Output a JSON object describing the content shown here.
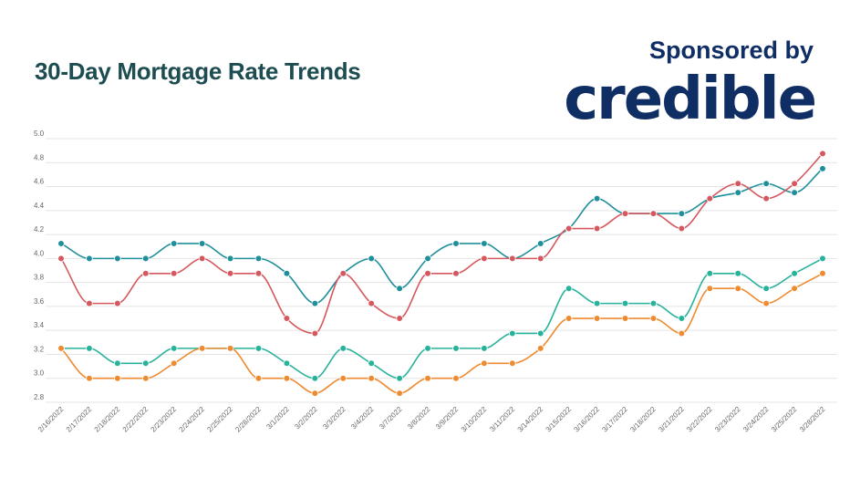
{
  "chart_data": {
    "type": "line",
    "title": "30-Day Mortgage Rate Trends",
    "sponsor_text": "Sponsored by",
    "sponsor_logo": "credible",
    "xlabel": "",
    "ylabel": "",
    "ylim": [
      2.8,
      5.0
    ],
    "yticks": [
      "5.0",
      "4.8",
      "4.6",
      "4.4",
      "4.2",
      "4.0",
      "3.8",
      "3.6",
      "3.4",
      "3.2",
      "3.0",
      "2.8"
    ],
    "grid": true,
    "legend": "none",
    "categories": [
      "2/16/2022",
      "2/17/2022",
      "2/18/2022",
      "2/22/2022",
      "2/23/2022",
      "2/24/2022",
      "2/25/2022",
      "2/28/2022",
      "3/1/2022",
      "3/2/2022",
      "3/3/2022",
      "3/4/2022",
      "3/7/2022",
      "3/8/2022",
      "3/9/2022",
      "3/10/2022",
      "3/11/2022",
      "3/14/2022",
      "3/15/2022",
      "3/16/2022",
      "3/17/2022",
      "3/18/2022",
      "3/21/2022",
      "3/22/2022",
      "3/23/2022",
      "3/24/2022",
      "3/25/2022",
      "3/28/2022"
    ],
    "series": [
      {
        "color": "#1f8f9b",
        "values": [
          4.125,
          4.0,
          4.0,
          4.0,
          4.125,
          4.125,
          4.0,
          4.0,
          3.875,
          3.625,
          3.875,
          4.0,
          3.75,
          4.0,
          4.125,
          4.125,
          4.0,
          4.125,
          4.25,
          4.5,
          4.375,
          4.375,
          4.375,
          4.5,
          4.55,
          4.625,
          4.55,
          4.75
        ]
      },
      {
        "color": "#d6585f",
        "values": [
          4.0,
          3.625,
          3.625,
          3.875,
          3.875,
          4.0,
          3.875,
          3.875,
          3.5,
          3.375,
          3.875,
          3.625,
          3.5,
          3.875,
          3.875,
          4.0,
          4.0,
          4.0,
          4.25,
          4.25,
          4.375,
          4.375,
          4.25,
          4.5,
          4.625,
          4.5,
          4.625,
          4.875
        ]
      },
      {
        "color": "#27b29b",
        "values": [
          3.25,
          3.25,
          3.125,
          3.125,
          3.25,
          3.25,
          3.25,
          3.25,
          3.125,
          3.0,
          3.25,
          3.125,
          3.0,
          3.25,
          3.25,
          3.25,
          3.375,
          3.375,
          3.75,
          3.625,
          3.625,
          3.625,
          3.5,
          3.875,
          3.875,
          3.75,
          3.875,
          4.0
        ]
      },
      {
        "color": "#ee8a30",
        "values": [
          3.25,
          3.0,
          3.0,
          3.0,
          3.125,
          3.25,
          3.25,
          3.0,
          3.0,
          2.875,
          3.0,
          3.0,
          2.875,
          3.0,
          3.0,
          3.125,
          3.125,
          3.25,
          3.5,
          3.5,
          3.5,
          3.5,
          3.375,
          3.75,
          3.75,
          3.625,
          3.75,
          3.875
        ]
      }
    ]
  }
}
